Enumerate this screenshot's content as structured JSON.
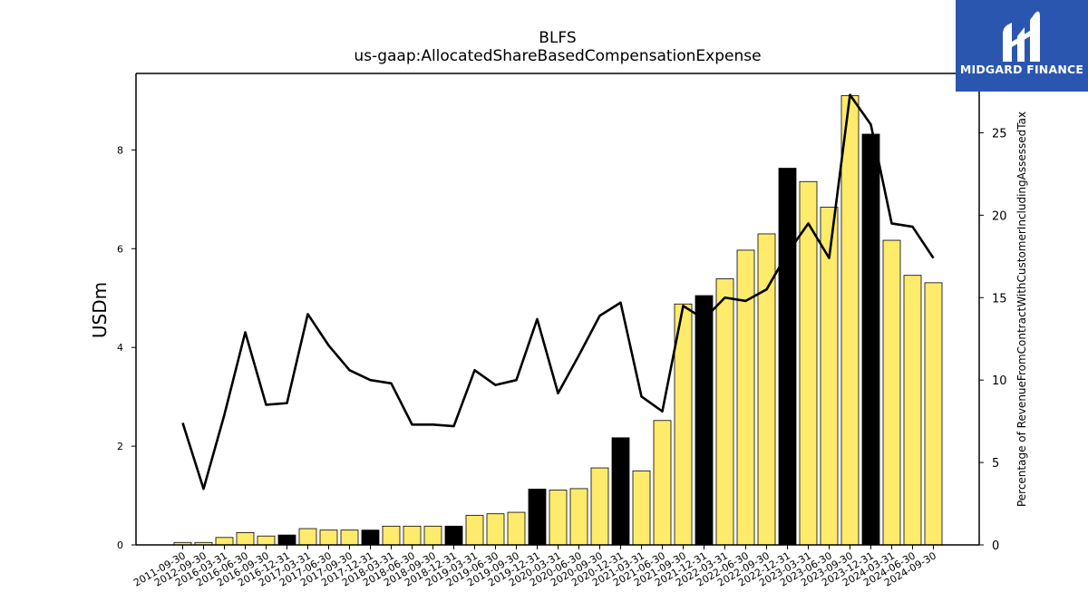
{
  "chart_data": {
    "type": "bar",
    "title": "BLFS",
    "subtitle": "us-gaap:AllocatedShareBasedCompensationExpense",
    "ylabel": "USDm",
    "y2label": "Percentage of RevenueFromContractWithCustomerIncludingAssessedTax",
    "ylim": [
      0,
      9.55
    ],
    "y2lim": [
      0,
      28.6
    ],
    "yticks": [
      0,
      2,
      4,
      6,
      8
    ],
    "y2ticks": [
      0,
      5,
      10,
      15,
      20,
      25
    ],
    "bar_color_primary": "#ffeb6b",
    "bar_color_highlight": "#000000",
    "line_color": "#000000",
    "categories": [
      "2011-09-30",
      "2012-09-30",
      "2016-03-31",
      "2016-06-30",
      "2016-09-30",
      "2016-12-31",
      "2017-03-31",
      "2017-06-30",
      "2017-09-30",
      "2017-12-31",
      "2018-03-31",
      "2018-06-30",
      "2018-09-30",
      "2018-12-31",
      "2019-03-31",
      "2019-06-30",
      "2019-09-30",
      "2019-12-31",
      "2020-03-31",
      "2020-06-30",
      "2020-09-30",
      "2020-12-31",
      "2021-03-31",
      "2021-06-30",
      "2021-09-30",
      "2021-12-31",
      "2022-03-31",
      "2022-06-30",
      "2022-09-30",
      "2022-12-31",
      "2023-03-31",
      "2023-06-30",
      "2023-09-30",
      "2023-12-31",
      "2024-03-31",
      "2024-06-30",
      "2024-09-30"
    ],
    "series": [
      {
        "type": "bar",
        "values": [
          0.05,
          0.05,
          0.15,
          0.25,
          0.18,
          0.2,
          0.33,
          0.3,
          0.3,
          0.3,
          0.38,
          0.38,
          0.38,
          0.38,
          0.6,
          0.63,
          0.66,
          1.13,
          1.11,
          1.14,
          1.56,
          2.17,
          1.5,
          2.52,
          4.88,
          5.05,
          5.39,
          5.97,
          6.3,
          7.63,
          7.36,
          6.84,
          9.1,
          8.32,
          6.17,
          5.46,
          5.31
        ],
        "highlight": [
          false,
          false,
          false,
          false,
          false,
          true,
          false,
          false,
          false,
          true,
          false,
          false,
          false,
          true,
          false,
          false,
          false,
          true,
          false,
          false,
          false,
          true,
          false,
          false,
          false,
          true,
          false,
          false,
          false,
          true,
          false,
          false,
          false,
          true,
          false,
          false,
          false
        ]
      },
      {
        "type": "line",
        "axis": "right",
        "values": [
          7.4,
          3.4,
          7.9,
          12.9,
          8.5,
          8.6,
          14.0,
          12.1,
          10.6,
          10.0,
          9.8,
          7.3,
          7.3,
          7.2,
          10.6,
          9.7,
          10.0,
          13.7,
          9.2,
          11.5,
          13.9,
          14.7,
          9.0,
          8.1,
          14.5,
          13.7,
          15.0,
          14.8,
          15.5,
          17.7,
          19.5,
          17.4,
          27.3,
          25.5,
          19.5,
          19.3,
          17.4
        ]
      }
    ]
  },
  "logo": {
    "text": "MIDGARD FINANCE"
  }
}
